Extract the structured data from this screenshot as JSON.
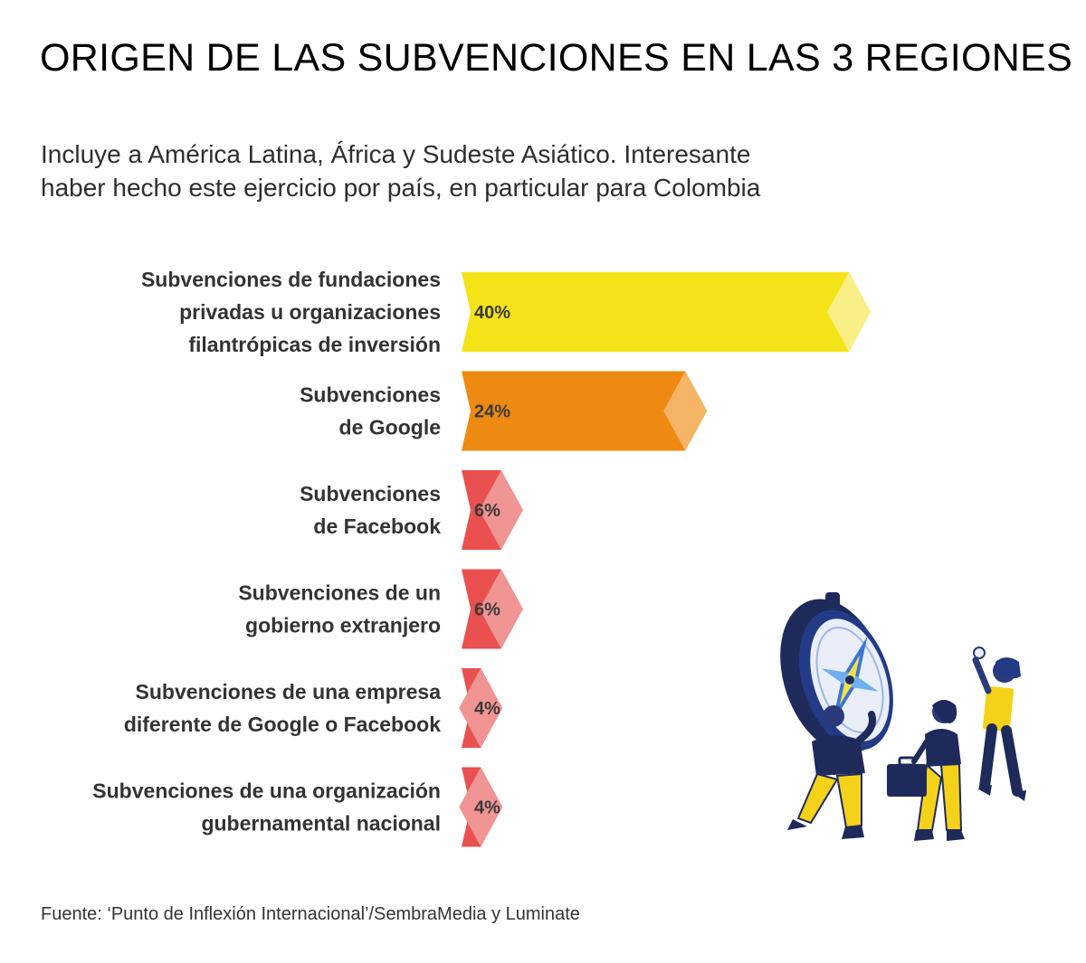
{
  "title": "ORIGEN DE LAS SUBVENCIONES EN LAS 3 REGIONES",
  "subtitle_lines": [
    "Incluye a América Latina, África y Sudeste Asiático. Interesante",
    "haber hecho este ejercicio por país, en particular para Colombia"
  ],
  "source": "Fuente: ‘Punto de Inflexión Internacional’/SembraMedia y Luminate",
  "chart_data": {
    "type": "bar",
    "orientation": "horizontal",
    "categories": [
      [
        "Subvenciones de fundaciones",
        "privadas u organizaciones",
        "filantrópicas de inversión"
      ],
      [
        "Subvenciones",
        "de Google"
      ],
      [
        "Subvenciones",
        "de Facebook"
      ],
      [
        "Subvenciones de un",
        "gobierno extranjero"
      ],
      [
        "Subvenciones de una empresa",
        "diferente de Google o Facebook"
      ],
      [
        "Subvenciones de una organización",
        "gubernamental nacional"
      ]
    ],
    "values": [
      40,
      24,
      6,
      6,
      4,
      4
    ],
    "value_labels": [
      "40%",
      "24%",
      "6%",
      "6%",
      "4%",
      "4%"
    ],
    "unit": "%",
    "colors": [
      "#f5e31a",
      "#ee8a12",
      "#e9504f",
      "#e9504f",
      "#e9504f",
      "#e9504f"
    ],
    "tip_colors": [
      "#f8ef86",
      "#f6b566",
      "#f19494",
      "#f19494",
      "#f19494",
      "#f19494"
    ],
    "grid": false,
    "legend": "none"
  },
  "illustration": "people-with-compass-illustration"
}
